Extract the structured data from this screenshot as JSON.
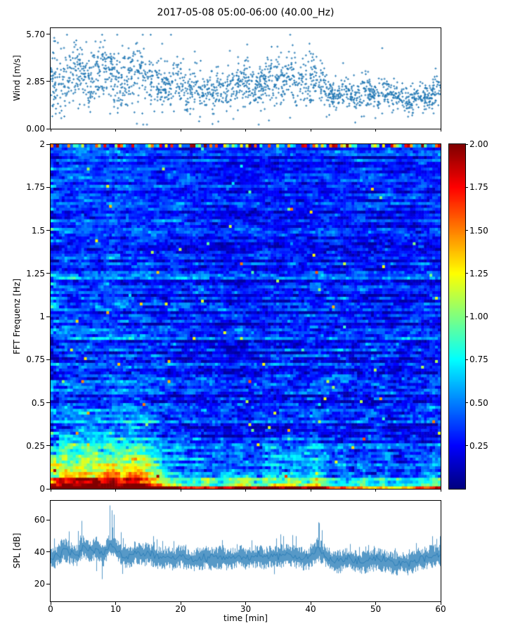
{
  "title": "2017-05-08 05:00-06:00 (40.00_Hz)",
  "xlabel": "time [min]",
  "figure": {
    "bg": "#ffffff",
    "accent": "#1f77b4"
  },
  "x_axis": {
    "lim": [
      0,
      60
    ],
    "ticks": [
      {
        "v": 0,
        "label": "0"
      },
      {
        "v": 10,
        "label": "10"
      },
      {
        "v": 20,
        "label": "20"
      },
      {
        "v": 30,
        "label": "30"
      },
      {
        "v": 40,
        "label": "40"
      },
      {
        "v": 50,
        "label": "50"
      },
      {
        "v": 60,
        "label": "60"
      }
    ]
  },
  "chart_data": [
    {
      "id": "wind",
      "type": "scatter",
      "ylabel": "Wind [m/s]",
      "ylim": [
        0,
        6.08
      ],
      "yticks": [
        {
          "v": 0,
          "label": "0.00"
        },
        {
          "v": 2.85,
          "label": "2.85"
        },
        {
          "v": 5.7,
          "label": "5.70"
        }
      ],
      "xlim": [
        0,
        60
      ],
      "marker": "plus",
      "marker_color": "#1f77b4",
      "n_points": 1900,
      "seed": 7,
      "mean_per_min": [
        3.1,
        3.0,
        2.6,
        3.3,
        3.6,
        3.0,
        2.5,
        3.2,
        3.8,
        3.6,
        3.2,
        2.8,
        3.3,
        3.2,
        3.5,
        2.9,
        2.6,
        2.8,
        2.5,
        2.7,
        2.6,
        2.3,
        2.5,
        2.6,
        2.4,
        2.2,
        2.4,
        2.3,
        2.5,
        2.7,
        3.0,
        2.7,
        2.4,
        2.8,
        3.2,
        3.0,
        2.7,
        3.3,
        3.1,
        2.8,
        3.2,
        3.4,
        2.6,
        2.1,
        2.0,
        2.2,
        2.1,
        1.9,
        2.2,
        2.0,
        1.8,
        2.1,
        2.2,
        1.9,
        1.8,
        1.7,
        1.9,
        2.0,
        1.8,
        2.1
      ],
      "spread_per_min": [
        0.9,
        1.0,
        1.1,
        0.9,
        1.0,
        1.1,
        1.0,
        1.0,
        0.9,
        1.0,
        1.0,
        0.9,
        0.9,
        1.0,
        0.9,
        0.8,
        0.8,
        0.7,
        0.7,
        0.7,
        0.7,
        0.6,
        0.7,
        0.7,
        0.6,
        0.6,
        0.6,
        0.6,
        0.7,
        0.7,
        0.7,
        0.7,
        0.6,
        0.7,
        0.8,
        0.7,
        0.7,
        0.8,
        0.8,
        0.7,
        0.8,
        0.8,
        0.7,
        0.5,
        0.5,
        0.5,
        0.5,
        0.4,
        0.5,
        0.5,
        0.4,
        0.5,
        0.5,
        0.4,
        0.4,
        0.4,
        0.4,
        0.5,
        0.4,
        0.5
      ]
    },
    {
      "id": "spectrogram",
      "type": "heatmap",
      "ylabel": "FFT Frequenz [Hz]",
      "ylim": [
        0,
        2
      ],
      "yticks": [
        {
          "v": 0,
          "label": "0"
        },
        {
          "v": 0.25,
          "label": "0.25"
        },
        {
          "v": 0.5,
          "label": "0.5"
        },
        {
          "v": 0.75,
          "label": "0.75"
        },
        {
          "v": 1,
          "label": "1"
        },
        {
          "v": 1.25,
          "label": "1.25"
        },
        {
          "v": 1.5,
          "label": "1.5"
        },
        {
          "v": 1.75,
          "label": "1.75"
        },
        {
          "v": 2,
          "label": "2"
        }
      ],
      "colormap": "jet",
      "clim": [
        0,
        2
      ],
      "colorbar_ticks": [
        {
          "v": 0.25,
          "label": "0.25"
        },
        {
          "v": 0.5,
          "label": "0.50"
        },
        {
          "v": 0.75,
          "label": "0.75"
        },
        {
          "v": 1,
          "label": "1.00"
        },
        {
          "v": 1.25,
          "label": "1.25"
        },
        {
          "v": 1.5,
          "label": "1.50"
        },
        {
          "v": 1.75,
          "label": "1.75"
        },
        {
          "v": 2,
          "label": "2.00"
        }
      ],
      "n_time_bins": 140,
      "n_freq_bins": 120,
      "seed": 12,
      "base_level": 0.3,
      "col_activity_per_min": [
        1.15,
        1.15,
        1.18,
        1.15,
        1.16,
        1.2,
        1.18,
        1.2,
        1.16,
        1.2,
        1.18,
        1.15,
        1.16,
        1.18,
        1.16,
        1.1,
        1.05,
        1.05,
        1.0,
        1.02,
        1.0,
        0.98,
        0.97,
        0.96,
        0.96,
        0.9,
        0.88,
        0.87,
        0.86,
        0.88,
        0.85,
        0.85,
        0.86,
        0.87,
        0.9,
        0.9,
        0.88,
        0.92,
        0.9,
        0.88,
        0.95,
        1.0,
        0.98,
        0.95,
        0.96,
        0.95,
        0.94,
        0.93,
        0.94,
        0.93,
        0.92,
        0.93,
        0.92,
        0.9,
        0.91,
        0.9,
        0.92,
        0.94,
        0.95,
        0.96
      ],
      "low_freq_boost_per_min": [
        1.6,
        1.7,
        1.9,
        1.8,
        1.9,
        2.0,
        1.8,
        1.9,
        1.8,
        2.0,
        1.9,
        1.8,
        1.9,
        2.0,
        1.9,
        1.7,
        1.5,
        1.3,
        1.1,
        1.0,
        1.0,
        0.9,
        0.9,
        0.8,
        0.9,
        0.8,
        0.9,
        0.9,
        1.0,
        1.1,
        1.0,
        1.0,
        0.9,
        1.1,
        1.2,
        1.1,
        1.0,
        1.2,
        1.1,
        1.0,
        1.1,
        1.3,
        1.0,
        0.8,
        0.7,
        0.8,
        0.8,
        0.7,
        0.8,
        0.7,
        0.7,
        0.8,
        0.7,
        0.6,
        0.7,
        0.6,
        0.7,
        0.8,
        0.8,
        0.9
      ]
    },
    {
      "id": "spl",
      "type": "line",
      "ylabel": "SPL [dB]",
      "ylim": [
        9,
        72
      ],
      "yticks": [
        {
          "v": 20,
          "label": "20"
        },
        {
          "v": 40,
          "label": "40"
        },
        {
          "v": 60,
          "label": "60"
        }
      ],
      "line_color": "#1f77b4",
      "seed": 3,
      "mean_per_min": [
        36,
        38,
        42,
        40,
        38,
        44,
        40,
        43,
        38,
        45,
        42,
        38,
        37,
        40,
        38,
        40,
        37,
        36,
        37,
        36,
        38,
        36,
        35,
        36,
        37,
        36,
        37,
        36,
        36,
        38,
        36,
        37,
        38,
        36,
        38,
        37,
        39,
        38,
        37,
        36,
        37,
        42,
        39,
        35,
        34,
        35,
        36,
        35,
        34,
        35,
        36,
        35,
        34,
        33,
        34,
        33,
        35,
        36,
        37,
        38
      ],
      "peak_per_min": [
        48,
        52,
        58,
        55,
        52,
        62,
        55,
        62,
        52,
        70,
        62,
        52,
        50,
        58,
        54,
        57,
        50,
        48,
        50,
        48,
        52,
        48,
        46,
        48,
        50,
        47,
        50,
        48,
        47,
        52,
        48,
        50,
        52,
        48,
        52,
        50,
        53,
        52,
        50,
        48,
        50,
        62,
        53,
        46,
        44,
        46,
        48,
        46,
        44,
        46,
        48,
        46,
        44,
        43,
        44,
        43,
        46,
        48,
        50,
        52
      ]
    }
  ]
}
